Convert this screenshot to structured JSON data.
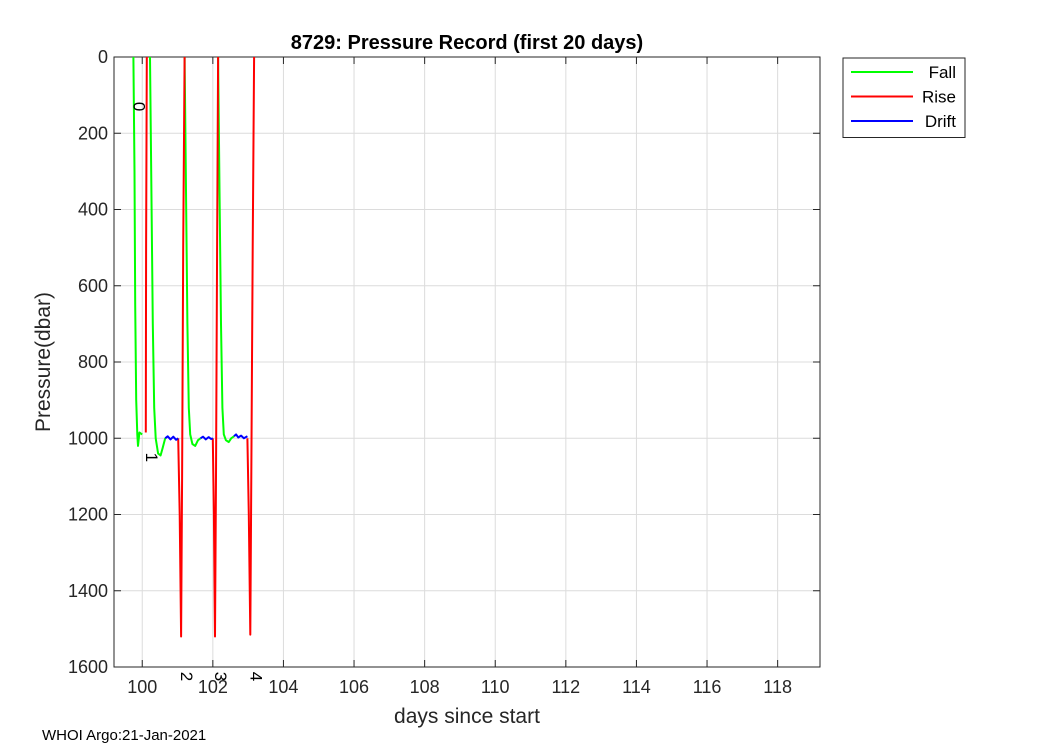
{
  "footer": "WHOI Argo:21-Jan-2021",
  "chart_data": {
    "type": "line",
    "title": "8729: Pressure Record (first 20 days)",
    "xlabel": "days since start",
    "ylabel": "Pressure(dbar)",
    "xlim": [
      99.2,
      119.2
    ],
    "ylim": [
      0,
      1600
    ],
    "y_reversed": true,
    "grid": true,
    "legend_placement": "outside-top-right",
    "x_ticks": [
      100,
      102,
      104,
      106,
      108,
      110,
      112,
      114,
      116,
      118
    ],
    "y_ticks": [
      0,
      200,
      400,
      600,
      800,
      1000,
      1200,
      1400,
      1600
    ],
    "series": [
      {
        "name": "Fall",
        "color": "#00ff00",
        "segments": [
          [
            [
              99.75,
              0
            ],
            [
              99.78,
              300
            ],
            [
              99.8,
              650
            ],
            [
              99.83,
              900
            ],
            [
              99.86,
              990
            ],
            [
              99.88,
              1020
            ],
            [
              99.92,
              985
            ],
            [
              100.0,
              990
            ]
          ],
          [
            [
              100.22,
              0
            ],
            [
              100.26,
              350
            ],
            [
              100.3,
              700
            ],
            [
              100.34,
              920
            ],
            [
              100.38,
              1000
            ],
            [
              100.45,
              1040
            ],
            [
              100.52,
              1045
            ],
            [
              100.58,
              1025
            ],
            [
              100.65,
              1000
            ]
          ],
          [
            [
              101.2,
              0
            ],
            [
              101.24,
              350
            ],
            [
              101.28,
              700
            ],
            [
              101.32,
              920
            ],
            [
              101.36,
              990
            ],
            [
              101.42,
              1015
            ],
            [
              101.5,
              1020
            ],
            [
              101.58,
              1005
            ],
            [
              101.65,
              1000
            ]
          ],
          [
            [
              102.15,
              0
            ],
            [
              102.19,
              350
            ],
            [
              102.23,
              700
            ],
            [
              102.27,
              920
            ],
            [
              102.31,
              990
            ],
            [
              102.37,
              1005
            ],
            [
              102.45,
              1010
            ],
            [
              102.52,
              1000
            ],
            [
              102.6,
              995
            ]
          ]
        ]
      },
      {
        "name": "Rise",
        "color": "#ff0000",
        "segments": [
          [
            [
              100.1,
              985
            ],
            [
              100.11,
              500
            ],
            [
              100.13,
              0
            ]
          ],
          [
            [
              101.02,
              1000
            ],
            [
              101.06,
              1200
            ],
            [
              101.1,
              1520
            ],
            [
              101.13,
              1100
            ],
            [
              101.16,
              500
            ],
            [
              101.2,
              0
            ]
          ],
          [
            [
              102.0,
              1000
            ],
            [
              102.03,
              1200
            ],
            [
              102.06,
              1520
            ],
            [
              102.09,
              1100
            ],
            [
              102.12,
              500
            ],
            [
              102.15,
              0
            ]
          ],
          [
            [
              102.98,
              1000
            ],
            [
              103.02,
              1200
            ],
            [
              103.06,
              1515
            ],
            [
              103.09,
              1100
            ],
            [
              103.13,
              500
            ],
            [
              103.17,
              0
            ]
          ]
        ]
      },
      {
        "name": "Drift",
        "color": "#0000ff",
        "segments": [
          [
            [
              100.65,
              1000
            ],
            [
              100.72,
              995
            ],
            [
              100.8,
              1003
            ],
            [
              100.88,
              996
            ],
            [
              100.96,
              1004
            ],
            [
              101.02,
              1000
            ]
          ],
          [
            [
              101.65,
              1000
            ],
            [
              101.72,
              996
            ],
            [
              101.8,
              1003
            ],
            [
              101.88,
              997
            ],
            [
              101.95,
              1002
            ],
            [
              102.0,
              1000
            ]
          ],
          [
            [
              102.6,
              995
            ],
            [
              102.66,
              990
            ],
            [
              102.72,
              998
            ],
            [
              102.8,
              993
            ],
            [
              102.88,
              1000
            ],
            [
              102.98,
              995
            ]
          ]
        ]
      }
    ],
    "annotations": [
      {
        "text": "0",
        "x": 99.75,
        "y": 130
      },
      {
        "text": "1",
        "x": 100.1,
        "y": 1050
      },
      {
        "text": "2",
        "x": 101.1,
        "y": 1625
      },
      {
        "text": "3",
        "x": 102.06,
        "y": 1625
      },
      {
        "text": "4",
        "x": 103.06,
        "y": 1625
      }
    ]
  }
}
